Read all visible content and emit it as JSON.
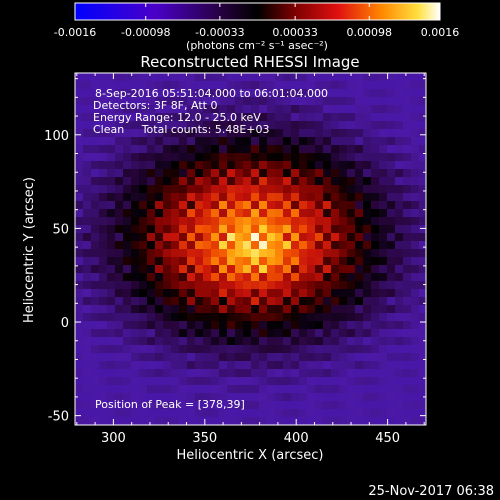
{
  "chart_data": {
    "type": "heatmap",
    "title": "Reconstructed RHESSI Image",
    "xlabel": "Heliocentric X (arcsec)",
    "ylabel": "Heliocentric Y (arcsec)",
    "xlim": [
      279,
      471
    ],
    "ylim": [
      -55,
      133
    ],
    "x_ticks": [
      300,
      350,
      400,
      450
    ],
    "y_ticks": [
      -50,
      0,
      50,
      100
    ],
    "colorbar": {
      "range": [
        -0.0016,
        0.0016
      ],
      "ticks": [
        "-0.0016",
        "-0.00098",
        "-0.00033",
        "0.00033",
        "0.00098",
        "0.0016"
      ],
      "units": "(photons cm⁻² s⁻¹ asec⁻²)",
      "colormap": "blue-purple-black-red-orange-yellow-white"
    },
    "annotations": [
      "8-Sep-2016 05:51:04.000 to 06:01:04.000",
      "Detectors: 3F 8F, Att 0",
      "Energy Range: 12.0 - 25.0 keV",
      "Clean     Total counts: 5.48E+03"
    ],
    "peak_label": "Position of Peak = [378,39]",
    "peak": {
      "x": 378,
      "y": 39
    },
    "source": {
      "center_x": 375,
      "center_y": 45,
      "sigma_x": 45,
      "sigma_y": 33
    },
    "footer_timestamp": "25-Nov-2017 06:38"
  }
}
